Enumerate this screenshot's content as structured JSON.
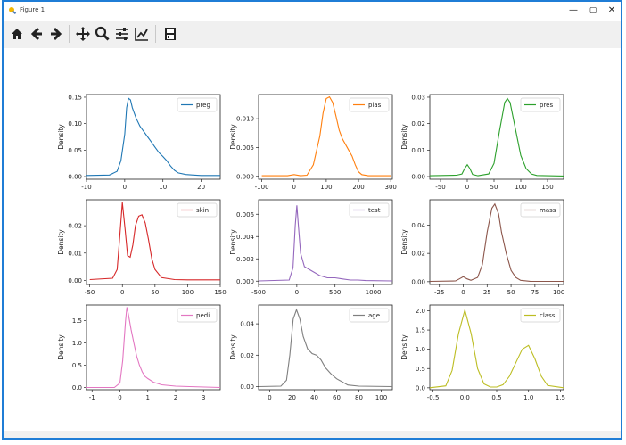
{
  "window": {
    "title": "Figure 1",
    "controls": {
      "minimize": "—",
      "maximize": "▢",
      "close": "✕"
    }
  },
  "toolbar": {
    "buttons": [
      "home-icon",
      "back-icon",
      "forward-icon",
      "pan-icon",
      "zoom-icon",
      "configure-subplots-icon",
      "edit-axis-icon",
      "save-icon"
    ]
  },
  "chart_data": [
    {
      "type": "line",
      "name": "preg",
      "legend": [
        "preg"
      ],
      "color": "#1f77b4",
      "xlabel": "",
      "ylabel": "Density",
      "xlim": [
        -10,
        25
      ],
      "ylim": [
        -0.005,
        0.155
      ],
      "xticks": [
        "-10",
        "0",
        "10",
        "20"
      ],
      "xtick_vals": [
        -10,
        0,
        10,
        20
      ],
      "yticks": [
        "0.00",
        "0.05",
        "0.10",
        "0.15"
      ],
      "ytick_vals": [
        0,
        0.05,
        0.1,
        0.15
      ],
      "x": [
        -10,
        -4,
        -2,
        -1,
        0,
        0.5,
        1,
        1.5,
        2,
        3,
        4,
        5,
        6,
        7,
        8,
        9,
        10,
        11,
        12,
        13,
        14,
        16,
        18,
        20,
        25
      ],
      "y": [
        0.002,
        0.003,
        0.01,
        0.03,
        0.08,
        0.13,
        0.148,
        0.145,
        0.13,
        0.11,
        0.095,
        0.085,
        0.075,
        0.065,
        0.055,
        0.045,
        0.038,
        0.03,
        0.02,
        0.012,
        0.007,
        0.004,
        0.003,
        0.002,
        0.002
      ]
    },
    {
      "type": "line",
      "name": "plas",
      "legend": [
        "plas"
      ],
      "color": "#ff7f0e",
      "xlabel": "",
      "ylabel": "Density",
      "xlim": [
        -110,
        305
      ],
      "ylim": [
        -0.0005,
        0.0142
      ],
      "xticks": [
        "-100",
        "0",
        "100",
        "200",
        "300"
      ],
      "xtick_vals": [
        -100,
        0,
        100,
        200,
        300
      ],
      "yticks": [
        "0.000",
        "0.005",
        "0.010"
      ],
      "ytick_vals": [
        0,
        0.005,
        0.01
      ],
      "x": [
        -100,
        -20,
        0,
        20,
        40,
        60,
        80,
        90,
        100,
        110,
        120,
        130,
        140,
        150,
        160,
        170,
        180,
        190,
        200,
        210,
        230,
        300
      ],
      "y": [
        0.0001,
        0.0001,
        0.0003,
        0.0001,
        0.0002,
        0.002,
        0.007,
        0.011,
        0.0135,
        0.0138,
        0.0128,
        0.0105,
        0.008,
        0.0065,
        0.0055,
        0.0045,
        0.0035,
        0.002,
        0.0008,
        0.0003,
        0.0001,
        0.0001
      ]
    },
    {
      "type": "line",
      "name": "pres",
      "legend": [
        "pres"
      ],
      "color": "#2ca02c",
      "xlabel": "",
      "ylabel": "Density",
      "xlim": [
        -70,
        180
      ],
      "ylim": [
        -0.001,
        0.031
      ],
      "xticks": [
        "-50",
        "0",
        "50",
        "100",
        "150"
      ],
      "xtick_vals": [
        -50,
        0,
        50,
        100,
        150
      ],
      "yticks": [
        "0.00",
        "0.01",
        "0.02",
        "0.03"
      ],
      "ytick_vals": [
        0,
        0.01,
        0.02,
        0.03
      ],
      "x": [
        -70,
        -20,
        -10,
        -5,
        0,
        5,
        10,
        20,
        40,
        50,
        60,
        70,
        75,
        80,
        90,
        100,
        110,
        120,
        130,
        180
      ],
      "y": [
        0.0003,
        0.0005,
        0.001,
        0.003,
        0.0045,
        0.003,
        0.0008,
        0.0003,
        0.001,
        0.005,
        0.017,
        0.028,
        0.0295,
        0.028,
        0.018,
        0.008,
        0.003,
        0.001,
        0.0004,
        0.0002
      ]
    },
    {
      "type": "line",
      "name": "skin",
      "legend": [
        "skin"
      ],
      "color": "#d62728",
      "xlabel": "",
      "ylabel": "Density",
      "xlim": [
        -55,
        150
      ],
      "ylim": [
        -0.0015,
        0.0295
      ],
      "xticks": [
        "-50",
        "0",
        "50",
        "100",
        "150"
      ],
      "xtick_vals": [
        -50,
        0,
        50,
        100,
        150
      ],
      "yticks": [
        "0.00",
        "0.01",
        "0.02"
      ],
      "ytick_vals": [
        0,
        0.01,
        0.02
      ],
      "x": [
        -50,
        -15,
        -8,
        -4,
        0,
        4,
        8,
        12,
        16,
        20,
        25,
        30,
        35,
        40,
        45,
        50,
        60,
        80,
        100,
        150
      ],
      "y": [
        0.0003,
        0.0008,
        0.004,
        0.016,
        0.0285,
        0.019,
        0.009,
        0.0085,
        0.013,
        0.02,
        0.0235,
        0.024,
        0.021,
        0.015,
        0.008,
        0.004,
        0.001,
        0.0003,
        0.0002,
        0.0002
      ]
    },
    {
      "type": "line",
      "name": "test",
      "legend": [
        "test"
      ],
      "color": "#9467bd",
      "xlabel": "",
      "ylabel": "Density",
      "xlim": [
        -500,
        1250
      ],
      "ylim": [
        -0.0003,
        0.0073
      ],
      "xticks": [
        "-500",
        "0",
        "500",
        "1000"
      ],
      "xtick_vals": [
        -500,
        0,
        500,
        1000
      ],
      "yticks": [
        "0.000",
        "0.002",
        "0.004",
        "0.006"
      ],
      "ytick_vals": [
        0,
        0.002,
        0.004,
        0.006
      ],
      "x": [
        -500,
        -100,
        -50,
        -20,
        0,
        20,
        50,
        100,
        150,
        200,
        300,
        400,
        500,
        600,
        700,
        800,
        900,
        1250
      ],
      "y": [
        2e-05,
        0.0001,
        0.0012,
        0.005,
        0.0068,
        0.005,
        0.0025,
        0.0013,
        0.0011,
        0.0009,
        0.0005,
        0.0003,
        0.0003,
        0.0002,
        0.0001,
        0.0001,
        5e-05,
        2e-05
      ]
    },
    {
      "type": "line",
      "name": "mass",
      "legend": [
        "mass"
      ],
      "color": "#8c564b",
      "xlabel": "",
      "ylabel": "Density",
      "xlim": [
        -35,
        105
      ],
      "ylim": [
        -0.002,
        0.058
      ],
      "xticks": [
        "-25",
        "0",
        "25",
        "50",
        "75",
        "100"
      ],
      "xtick_vals": [
        -25,
        0,
        25,
        50,
        75,
        100
      ],
      "yticks": [
        "0.00",
        "0.02",
        "0.04"
      ],
      "ytick_vals": [
        0,
        0.02,
        0.04
      ],
      "x": [
        -35,
        -8,
        -4,
        0,
        4,
        8,
        15,
        20,
        25,
        30,
        33,
        37,
        40,
        45,
        50,
        55,
        60,
        70,
        105
      ],
      "y": [
        0.0002,
        0.0005,
        0.002,
        0.0035,
        0.002,
        0.001,
        0.003,
        0.012,
        0.035,
        0.052,
        0.055,
        0.048,
        0.035,
        0.02,
        0.008,
        0.003,
        0.001,
        0.0003,
        0.0002
      ]
    },
    {
      "type": "line",
      "name": "pedi",
      "legend": [
        "pedi"
      ],
      "color": "#e377c2",
      "xlabel": "",
      "ylabel": "Density",
      "xlim": [
        -1.2,
        3.6
      ],
      "ylim": [
        -0.05,
        1.85
      ],
      "xticks": [
        "-1",
        "0",
        "1",
        "2",
        "3"
      ],
      "xtick_vals": [
        -1,
        0,
        1,
        2,
        3
      ],
      "yticks": [
        "0.0",
        "0.5",
        "1.0",
        "1.5"
      ],
      "ytick_vals": [
        0,
        0.5,
        1.0,
        1.5
      ],
      "x": [
        -1.2,
        -0.2,
        0,
        0.1,
        0.2,
        0.25,
        0.3,
        0.4,
        0.5,
        0.6,
        0.7,
        0.8,
        0.9,
        1.0,
        1.2,
        1.5,
        2.0,
        2.5,
        3.6
      ],
      "y": [
        0.0,
        0.0,
        0.1,
        0.6,
        1.5,
        1.8,
        1.65,
        1.3,
        1.0,
        0.7,
        0.5,
        0.35,
        0.25,
        0.2,
        0.12,
        0.06,
        0.03,
        0.02,
        0.0
      ]
    },
    {
      "type": "line",
      "name": "age",
      "legend": [
        "age"
      ],
      "color": "#7f7f7f",
      "xlabel": "",
      "ylabel": "Density",
      "xlim": [
        -10,
        110
      ],
      "ylim": [
        -0.002,
        0.052
      ],
      "xticks": [
        "0",
        "20",
        "40",
        "60",
        "80",
        "100"
      ],
      "xtick_vals": [
        0,
        20,
        40,
        60,
        80,
        100
      ],
      "yticks": [
        "0.00",
        "0.02",
        "0.04"
      ],
      "ytick_vals": [
        0,
        0.02,
        0.04
      ],
      "x": [
        -10,
        10,
        15,
        18,
        21,
        24,
        27,
        30,
        34,
        38,
        42,
        46,
        50,
        55,
        60,
        65,
        70,
        80,
        110
      ],
      "y": [
        0.0,
        0.0003,
        0.004,
        0.02,
        0.043,
        0.049,
        0.043,
        0.032,
        0.024,
        0.021,
        0.02,
        0.017,
        0.012,
        0.008,
        0.005,
        0.003,
        0.001,
        0.0003,
        0.0
      ]
    },
    {
      "type": "line",
      "name": "class",
      "legend": [
        "class"
      ],
      "color": "#bcbd22",
      "xlabel": "",
      "ylabel": "Density",
      "xlim": [
        -0.55,
        1.55
      ],
      "ylim": [
        -0.05,
        2.15
      ],
      "xticks": [
        "-0.5",
        "0.0",
        "0.5",
        "1.0",
        "1.5"
      ],
      "xtick_vals": [
        -0.5,
        0,
        0.5,
        1.0,
        1.5
      ],
      "yticks": [
        "0.0",
        "0.5",
        "1.0",
        "1.5",
        "2.0"
      ],
      "ytick_vals": [
        0,
        0.5,
        1.0,
        1.5,
        2.0
      ],
      "x": [
        -0.55,
        -0.3,
        -0.2,
        -0.1,
        0,
        0.1,
        0.2,
        0.3,
        0.4,
        0.5,
        0.6,
        0.7,
        0.8,
        0.9,
        1.0,
        1.1,
        1.2,
        1.3,
        1.55
      ],
      "y": [
        0.0,
        0.05,
        0.45,
        1.4,
        2.02,
        1.4,
        0.5,
        0.1,
        0.02,
        0.02,
        0.08,
        0.3,
        0.65,
        1.0,
        1.1,
        0.75,
        0.3,
        0.06,
        0.0
      ]
    }
  ]
}
